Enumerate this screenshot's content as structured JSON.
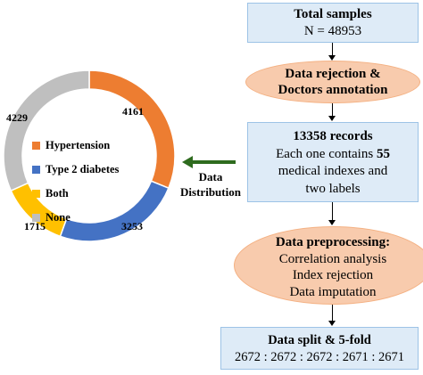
{
  "flow": {
    "total": {
      "title": "Total samples",
      "n": "N = 48953"
    },
    "rejection": {
      "line1": "Data rejection &",
      "line2": "Doctors annotation"
    },
    "records": {
      "title": "13358 records",
      "line2_prefix": "Each one contains ",
      "line2_bold": "55",
      "line3": "medical indexes and",
      "line4": "two labels"
    },
    "preprocessing": {
      "title": "Data preprocessing:",
      "step1": "Correlation analysis",
      "step2": "Index rejection",
      "step3": "Data imputation"
    },
    "split": {
      "title": "Data split & 5-fold",
      "values": "2672 : 2672 : 2672 : 2671 : 2671"
    }
  },
  "distribution_label": {
    "line1": "Data",
    "line2": "Distribution"
  },
  "chart_data": {
    "type": "pie",
    "categories": [
      "Hypertension",
      "Type 2 diabetes",
      "Both",
      "None"
    ],
    "values": [
      4161,
      3253,
      1715,
      4229
    ],
    "colors": [
      "#ed7d31",
      "#4472c4",
      "#ffc000",
      "#bfbfbf"
    ],
    "value_labels": [
      "4161",
      "3253",
      "1715",
      "4229"
    ],
    "legend": [
      "Hypertension",
      "Type 2 diabetes",
      "Both",
      "None"
    ]
  },
  "colors": {
    "box_fill": "#deebf7",
    "box_border": "#9dc3e6",
    "ellipse_fill": "#f8cbad",
    "arrow_green": "#2e6b1e"
  }
}
